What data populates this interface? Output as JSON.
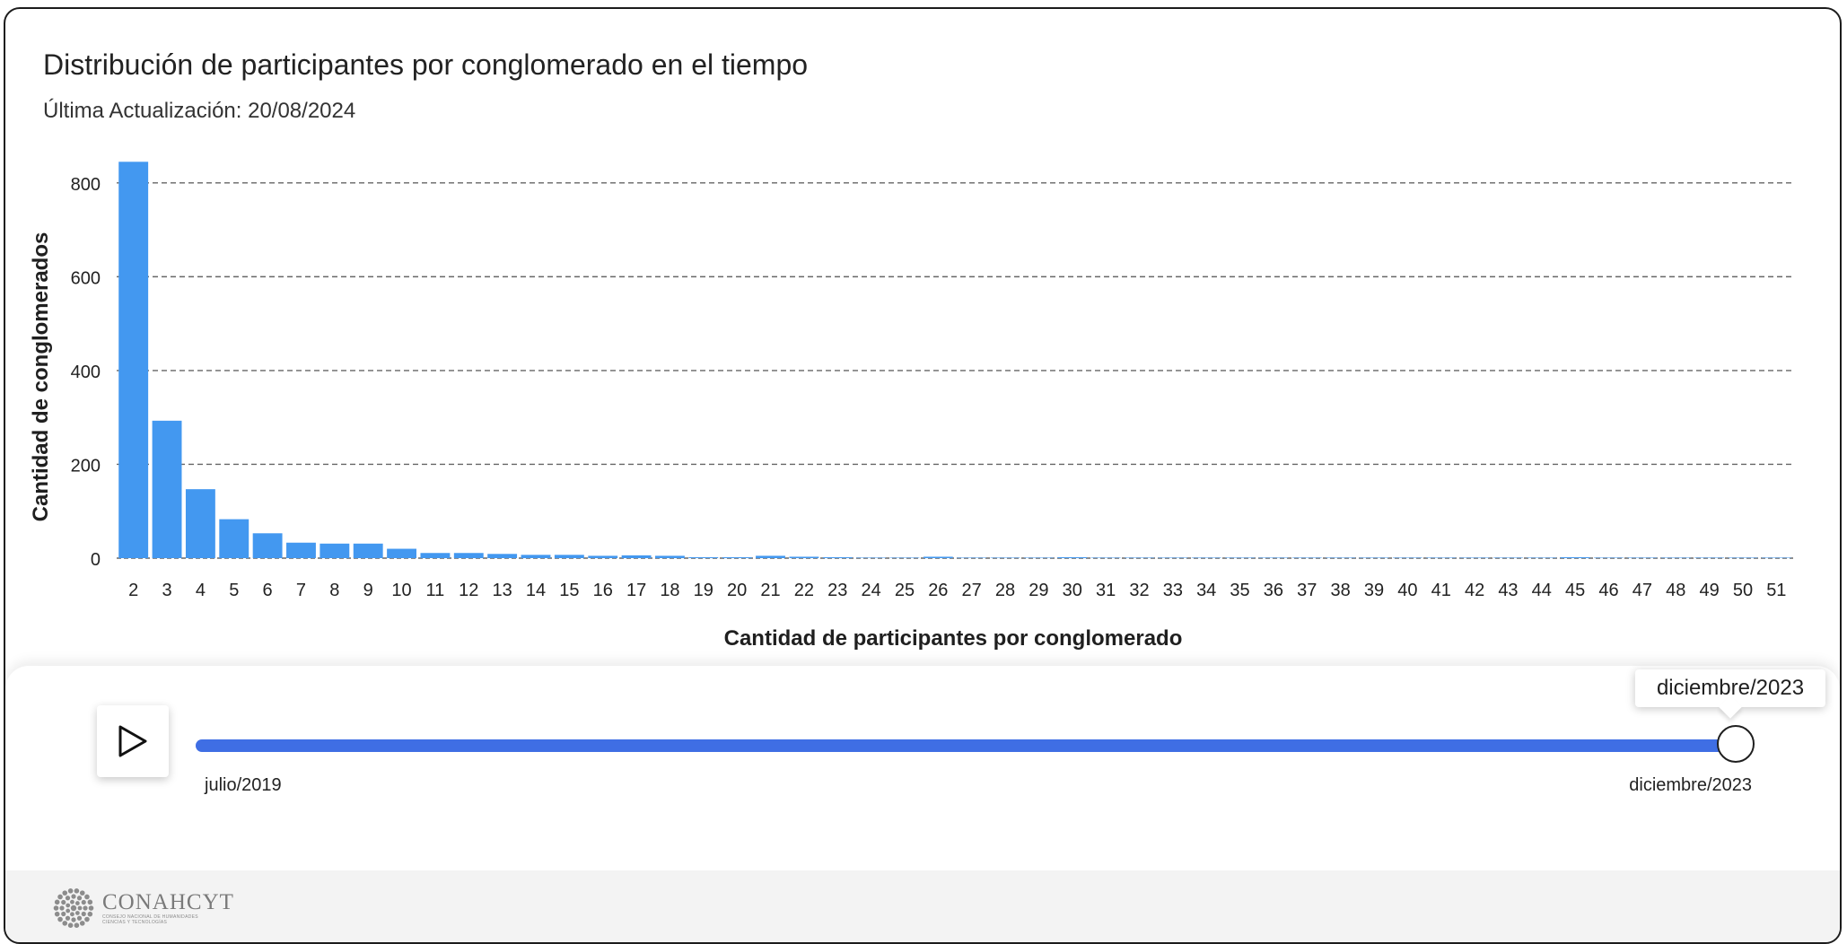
{
  "title": "Distribución de participantes por conglomerado en el tiempo",
  "subtitle": "Última Actualización: 20/08/2024",
  "chart_data": {
    "type": "bar",
    "xlabel": "Cantidad de participantes por conglomerado",
    "ylabel": "Cantidad de conglomerados",
    "ylim": [
      0,
      880
    ],
    "yticks": [
      0,
      200,
      400,
      600,
      800
    ],
    "grid": true,
    "bar_color": "#4398f0",
    "categories": [
      "2",
      "3",
      "4",
      "5",
      "6",
      "7",
      "8",
      "9",
      "10",
      "11",
      "12",
      "13",
      "14",
      "15",
      "16",
      "17",
      "18",
      "19",
      "20",
      "21",
      "22",
      "23",
      "24",
      "25",
      "26",
      "27",
      "28",
      "29",
      "30",
      "31",
      "32",
      "33",
      "34",
      "35",
      "36",
      "37",
      "38",
      "39",
      "40",
      "41",
      "42",
      "43",
      "44",
      "45",
      "46",
      "47",
      "48",
      "49",
      "50",
      "51"
    ],
    "values": [
      845,
      293,
      147,
      83,
      53,
      33,
      31,
      31,
      20,
      11,
      11,
      9,
      7,
      7,
      5,
      6,
      5,
      2,
      2,
      5,
      3,
      2,
      1,
      1,
      3,
      1,
      1,
      1,
      2,
      1,
      1,
      1,
      1,
      1,
      1,
      1,
      1,
      1,
      1,
      1,
      1,
      1,
      1,
      2,
      1,
      1,
      1,
      1,
      1,
      1
    ]
  },
  "player": {
    "play_icon": "play-icon",
    "start_label": "julio/2019",
    "end_label": "diciembre/2023",
    "current_label": "diciembre/2023",
    "progress": 1.0,
    "accent_color": "#3f6ee4"
  },
  "footer": {
    "logo_name": "CONAHCYT",
    "logo_sub_1": "CONSEJO NACIONAL DE HUMANIDADES",
    "logo_sub_2": "CIENCIAS Y TECNOLOGÍAS"
  }
}
